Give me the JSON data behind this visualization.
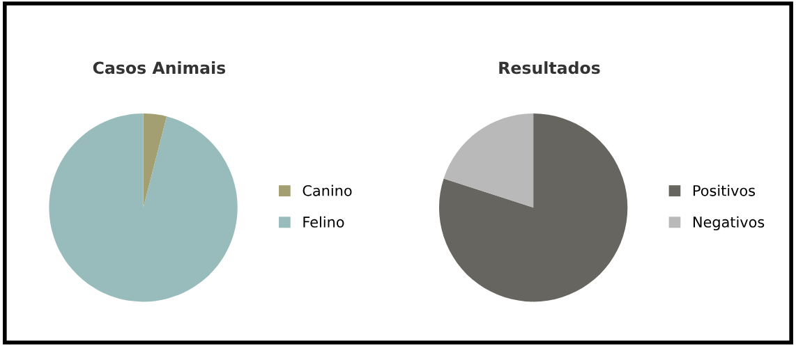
{
  "chart_data": [
    {
      "type": "pie",
      "title": "Casos Animais",
      "categories": [
        "Canino",
        "Felino"
      ],
      "values": [
        4,
        96
      ],
      "colors": [
        "#a39f72",
        "#98bcbb"
      ],
      "legend": "right"
    },
    {
      "type": "pie",
      "title": "Resultados",
      "categories": [
        "Positivos",
        "Negativos"
      ],
      "values": [
        80,
        20
      ],
      "colors": [
        "#66655f",
        "#b9b9b9"
      ],
      "legend": "right"
    }
  ]
}
